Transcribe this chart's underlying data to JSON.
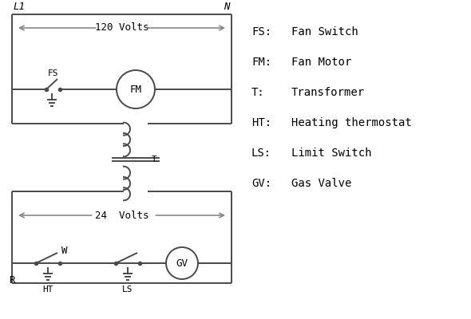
{
  "bg_color": "#ffffff",
  "line_color": "#4a4a4a",
  "text_color": "#000000",
  "arrow_color": "#888888",
  "L1_label": "L1",
  "N_label": "N",
  "volts120_label": "120 Volts",
  "volts24_label": "24  Volts",
  "T_label": "T",
  "R_label": "R",
  "W_label": "W",
  "HT_label": "HT",
  "LS_label": "LS",
  "FS_label": "FS",
  "FM_label": "FM",
  "GV_label": "GV",
  "legend_items": [
    [
      "FS:",
      "Fan Switch"
    ],
    [
      "FM:",
      "Fan Motor"
    ],
    [
      "T:",
      "Transformer"
    ],
    [
      "HT:",
      "Heating thermostat"
    ],
    [
      "LS:",
      "Limit Switch"
    ],
    [
      "GV:",
      "Gas Valve"
    ]
  ]
}
